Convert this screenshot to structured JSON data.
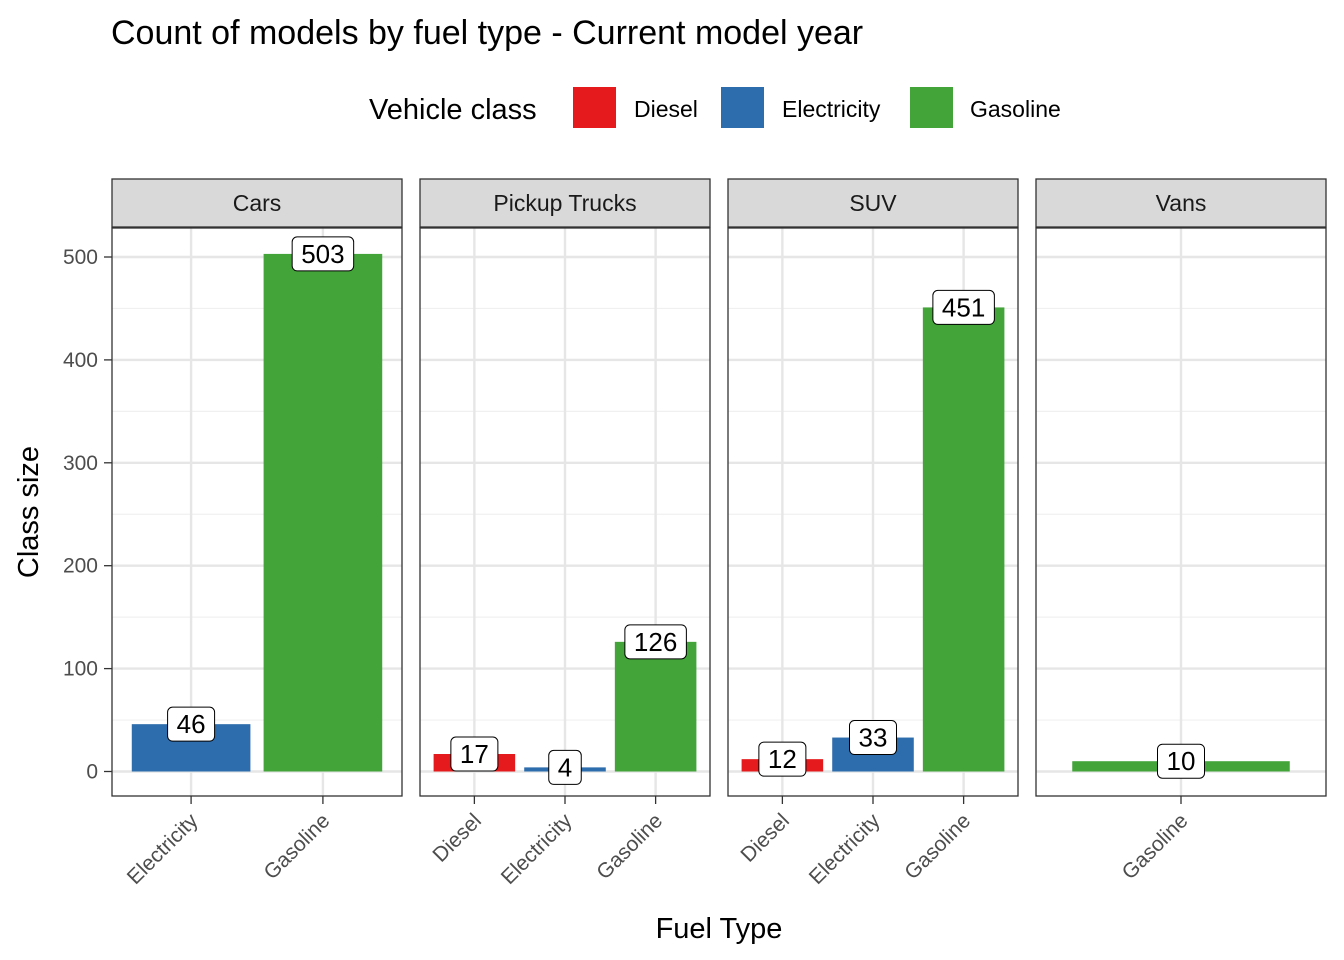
{
  "chart_data": {
    "type": "bar",
    "title": "Count of models by fuel type - Current model year",
    "xlabel": "Fuel Type",
    "ylabel": "Class size",
    "ylim": [
      0,
      550
    ],
    "yticks": [
      0,
      100,
      200,
      300,
      400,
      500
    ],
    "grid": true,
    "legend": {
      "title": "Vehicle class",
      "placement": "top",
      "entries": [
        {
          "name": "Diesel",
          "color": "#E41A1C"
        },
        {
          "name": "Electricity",
          "color": "#2E6DAD"
        },
        {
          "name": "Gasoline",
          "color": "#43A43A"
        }
      ]
    },
    "facets": [
      {
        "name": "Cars",
        "categories": [
          "Electricity",
          "Gasoline"
        ],
        "values": [
          46,
          503
        ]
      },
      {
        "name": "Pickup Trucks",
        "categories": [
          "Diesel",
          "Electricity",
          "Gasoline"
        ],
        "values": [
          17,
          4,
          126
        ]
      },
      {
        "name": "SUV",
        "categories": [
          "Diesel",
          "Electricity",
          "Gasoline"
        ],
        "values": [
          12,
          33,
          451
        ]
      },
      {
        "name": "Vans",
        "categories": [
          "Gasoline"
        ],
        "values": [
          10
        ]
      }
    ]
  }
}
